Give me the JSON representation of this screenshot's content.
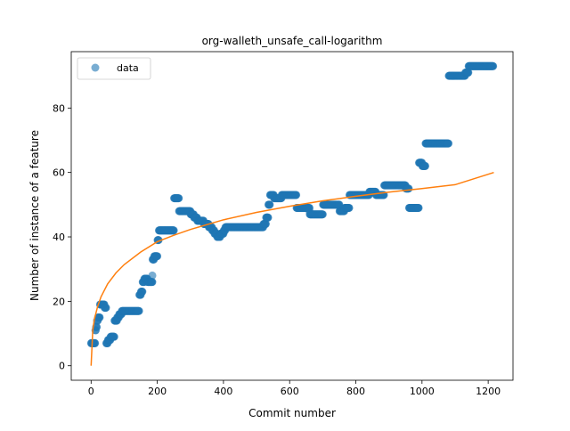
{
  "chart_data": {
    "type": "scatter",
    "title": "org-walleth_unsafe_call-logarithm",
    "xlabel": "Commit number",
    "ylabel": "Number of instance of a feature",
    "xlim": [
      -60,
      1275
    ],
    "ylim": [
      -4.5,
      97.5
    ],
    "xticks": [
      0,
      200,
      400,
      600,
      800,
      1000,
      1200
    ],
    "yticks": [
      0,
      20,
      40,
      60,
      80
    ],
    "grid": false,
    "legend": {
      "placement": "top-left",
      "entries": [
        "data"
      ]
    },
    "colors": {
      "data": "#1f77b4",
      "fit": "#ff7f0e"
    },
    "series": [
      {
        "name": "data",
        "kind": "scatter",
        "segments": [
          [
            0,
            12,
            7
          ],
          [
            13,
            14,
            11
          ],
          [
            15,
            17,
            12
          ],
          [
            18,
            20,
            14
          ],
          [
            21,
            26,
            15
          ],
          [
            27,
            40,
            19
          ],
          [
            41,
            45,
            18
          ],
          [
            46,
            50,
            7
          ],
          [
            51,
            58,
            8
          ],
          [
            59,
            70,
            9
          ],
          [
            71,
            78,
            14
          ],
          [
            79,
            84,
            15
          ],
          [
            85,
            92,
            16
          ],
          [
            93,
            145,
            17
          ],
          [
            146,
            150,
            22
          ],
          [
            151,
            155,
            23
          ],
          [
            156,
            160,
            26
          ],
          [
            161,
            170,
            27
          ],
          [
            171,
            185,
            26
          ],
          [
            186,
            190,
            33
          ],
          [
            191,
            200,
            34
          ],
          [
            201,
            204,
            39
          ],
          [
            205,
            250,
            42
          ],
          [
            251,
            265,
            52
          ],
          [
            266,
            300,
            48
          ],
          [
            301,
            310,
            47
          ],
          [
            311,
            320,
            46
          ],
          [
            321,
            340,
            45
          ],
          [
            341,
            355,
            44
          ],
          [
            356,
            365,
            43
          ],
          [
            366,
            372,
            42
          ],
          [
            373,
            380,
            41
          ],
          [
            381,
            390,
            40
          ],
          [
            391,
            400,
            41
          ],
          [
            401,
            405,
            42
          ],
          [
            406,
            520,
            43
          ],
          [
            521,
            528,
            44
          ],
          [
            529,
            535,
            46
          ],
          [
            536,
            540,
            50
          ],
          [
            541,
            552,
            53
          ],
          [
            553,
            575,
            52
          ],
          [
            576,
            620,
            53
          ],
          [
            621,
            660,
            49
          ],
          [
            661,
            700,
            47
          ],
          [
            701,
            750,
            50
          ],
          [
            751,
            765,
            48
          ],
          [
            766,
            780,
            49
          ],
          [
            781,
            840,
            53
          ],
          [
            841,
            860,
            54
          ],
          [
            861,
            885,
            53
          ],
          [
            886,
            950,
            56
          ],
          [
            951,
            960,
            55
          ],
          [
            961,
            990,
            49
          ],
          [
            991,
            1000,
            63
          ],
          [
            1001,
            1010,
            62
          ],
          [
            1011,
            1080,
            69
          ],
          [
            1081,
            1130,
            90
          ],
          [
            1131,
            1140,
            91
          ],
          [
            1141,
            1215,
            93
          ]
        ],
        "outliers": [
          [
            185,
            28
          ],
          [
            660,
            48
          ]
        ]
      },
      {
        "name": "fit",
        "kind": "line",
        "x": [
          0,
          5,
          10,
          20,
          30,
          50,
          75,
          100,
          150,
          200,
          250,
          300,
          400,
          500,
          600,
          700,
          800,
          900,
          1000,
          1100,
          1217
        ],
        "y": [
          0,
          11,
          14.5,
          18.5,
          21.4,
          25.4,
          28.8,
          31.4,
          35.3,
          38.5,
          40.5,
          42.3,
          45.3,
          47.6,
          49.5,
          51.2,
          52.6,
          53.9,
          55.0,
          56.2,
          60.0
        ]
      }
    ]
  }
}
